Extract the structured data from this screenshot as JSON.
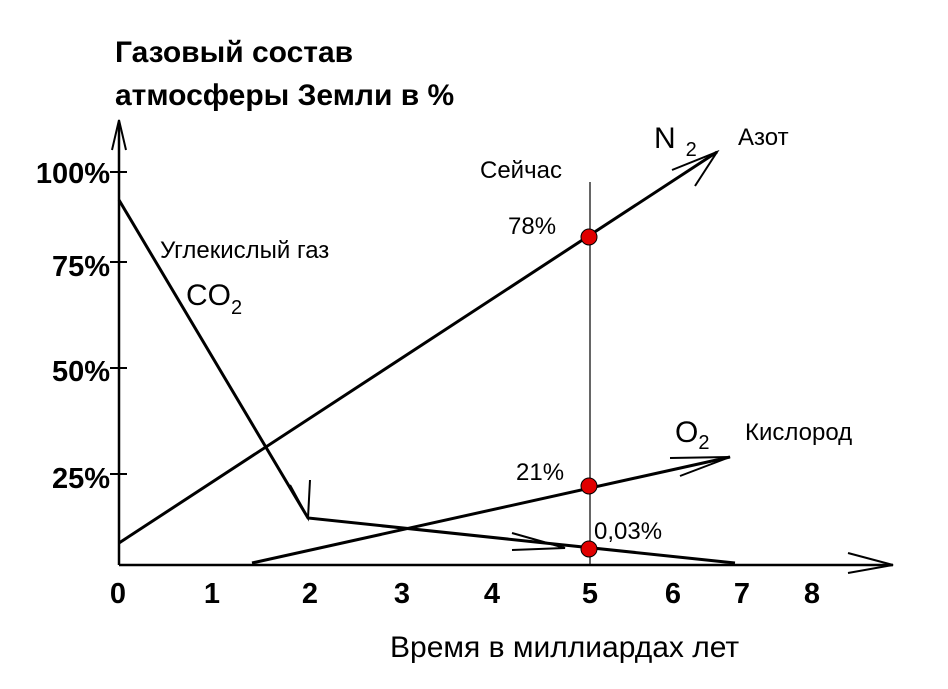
{
  "title": [
    "Газовый состав",
    "атмосферы Земли в  %"
  ],
  "y_labels": [
    "100%",
    "75%",
    "50%",
    "25%"
  ],
  "x_labels": [
    "0",
    "1",
    "2",
    "3",
    "4",
    "5",
    "6",
    "7",
    "8"
  ],
  "x_title": "Время в миллиардах  лет",
  "now_label": "Сейчас",
  "nitrogen": {
    "formula": "N",
    "sub": "2",
    "name": "Азот",
    "value_label": "78%"
  },
  "carbon_dioxide": {
    "name": "Углекислый газ",
    "formula": "CO",
    "sub": "2",
    "value_label": "0,03%"
  },
  "oxygen": {
    "formula": "O",
    "sub": "2",
    "name": "Кислород",
    "value_label": "21%"
  }
}
